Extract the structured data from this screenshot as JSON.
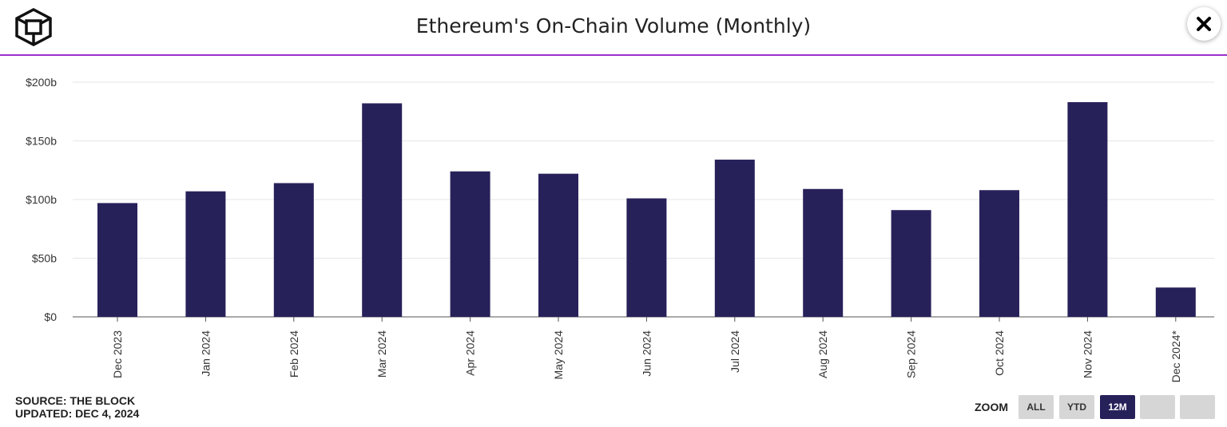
{
  "header": {
    "title": "Ethereum's On-Chain Volume (Monthly)",
    "logo_icon": "the-block-cube-logo-icon",
    "close_icon": "close-x-icon"
  },
  "chart_data": {
    "type": "bar",
    "categories": [
      "Dec 2023",
      "Jan 2024",
      "Feb 2024",
      "Mar 2024",
      "Apr 2024",
      "May 2024",
      "Jun 2024",
      "Jul 2024",
      "Aug 2024",
      "Sep 2024",
      "Oct 2024",
      "Nov 2024",
      "Dec 2024*"
    ],
    "values": [
      97,
      107,
      114,
      182,
      124,
      122,
      101,
      134,
      109,
      91,
      108,
      183,
      25
    ],
    "unit": "USD billions",
    "yticks": [
      "$0",
      "$50b",
      "$100b",
      "$150b",
      "$200b"
    ],
    "ylim": [
      0,
      200
    ],
    "grid": true,
    "bar_color": "#27215a"
  },
  "footer": {
    "source": "SOURCE: THE BLOCK",
    "updated": "UPDATED: DEC 4, 2024"
  },
  "zoom": {
    "label": "ZOOM",
    "buttons": [
      {
        "label": "ALL",
        "active": false
      },
      {
        "label": "YTD",
        "active": false
      },
      {
        "label": "12M",
        "active": true
      },
      {
        "label": "",
        "active": false
      },
      {
        "label": "",
        "active": false
      }
    ]
  },
  "colors": {
    "accent": "#9b2fc9",
    "bar": "#27215a",
    "button": "#d6d6d6"
  }
}
